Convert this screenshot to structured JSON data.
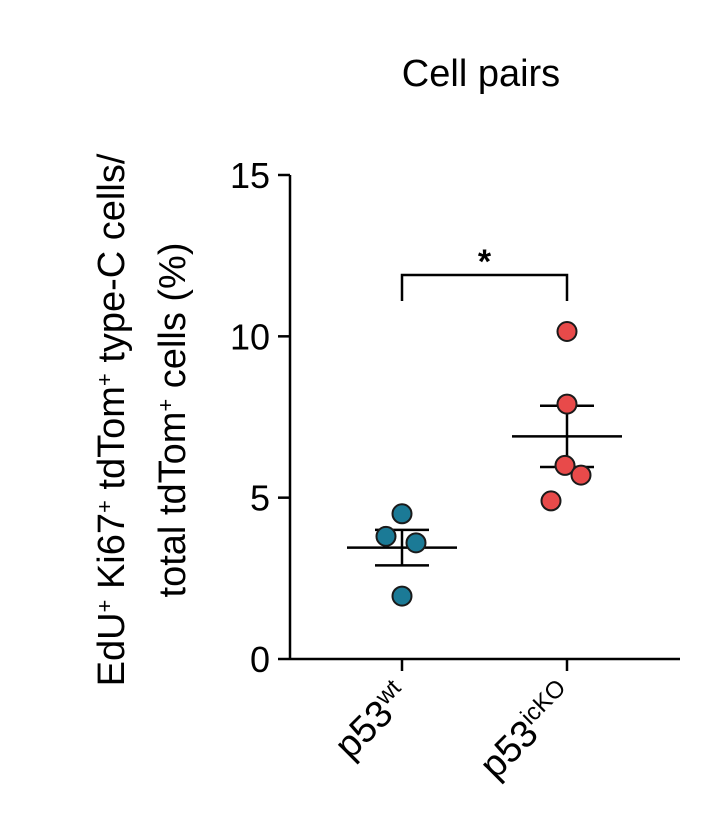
{
  "chart_data": {
    "type": "scatter",
    "title": "Cell pairs",
    "ylabel": {
      "line1": [
        "EdU",
        "+",
        " Ki67",
        "+",
        " tdTom",
        "+",
        " type-C cells/"
      ],
      "line2": [
        "total tdTom",
        "+",
        " cells (%)"
      ]
    },
    "ylim": [
      0,
      15
    ],
    "yticks": [
      {
        "value": 0,
        "label": "0"
      },
      {
        "value": 5,
        "label": "5"
      },
      {
        "value": 10,
        "label": "10"
      },
      {
        "value": 15,
        "label": "15"
      }
    ],
    "groups": [
      {
        "label_base": "p53",
        "label_sup": "wt",
        "color": "#1b7a96",
        "points": [
          4.5,
          3.8,
          3.6,
          1.95
        ],
        "mean": 3.45,
        "sem_low": 2.9,
        "sem_high": 4.0
      },
      {
        "label_base": "p53",
        "label_sup": "icKO",
        "color": "#e84a4a",
        "points": [
          10.15,
          7.9,
          6.0,
          5.7,
          4.9
        ],
        "mean": 6.9,
        "sem_low": 5.95,
        "sem_high": 7.85
      }
    ],
    "significance": {
      "label": "*",
      "between": [
        0,
        1
      ],
      "y": 11.9
    }
  }
}
